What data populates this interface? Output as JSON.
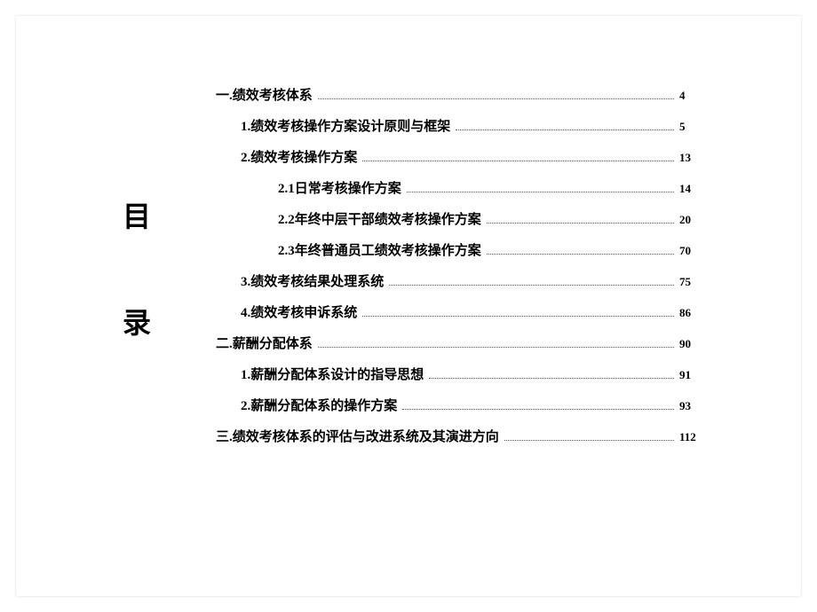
{
  "title": {
    "char1": "目",
    "char2": "录"
  },
  "toc": [
    {
      "indent": 0,
      "label": "一.绩效考核体系",
      "page": "4"
    },
    {
      "indent": 1,
      "label": "1.绩效考核操作方案设计原则与框架",
      "page": "5"
    },
    {
      "indent": 1,
      "label": "2.绩效考核操作方案",
      "page": "13"
    },
    {
      "indent": 2,
      "label": "2.1日常考核操作方案",
      "page": "14"
    },
    {
      "indent": 2,
      "label": "2.2年终中层干部绩效考核操作方案",
      "page": "20"
    },
    {
      "indent": 2,
      "label": "2.3年终普通员工绩效考核操作方案",
      "page": "70"
    },
    {
      "indent": 1,
      "label": "3.绩效考核结果处理系统",
      "page": "75"
    },
    {
      "indent": 1,
      "label": "4.绩效考核申诉系统",
      "page": "86"
    },
    {
      "indent": 0,
      "label": "二.薪酬分配体系",
      "page": "90"
    },
    {
      "indent": 1,
      "label": "1.薪酬分配体系设计的指导思想",
      "page": "91"
    },
    {
      "indent": 1,
      "label": "2.薪酬分配体系的操作方案",
      "page": "93"
    },
    {
      "indent": 0,
      "label": "三.绩效考核体系的评估与改进系统及其演进方向",
      "page": "112"
    }
  ]
}
